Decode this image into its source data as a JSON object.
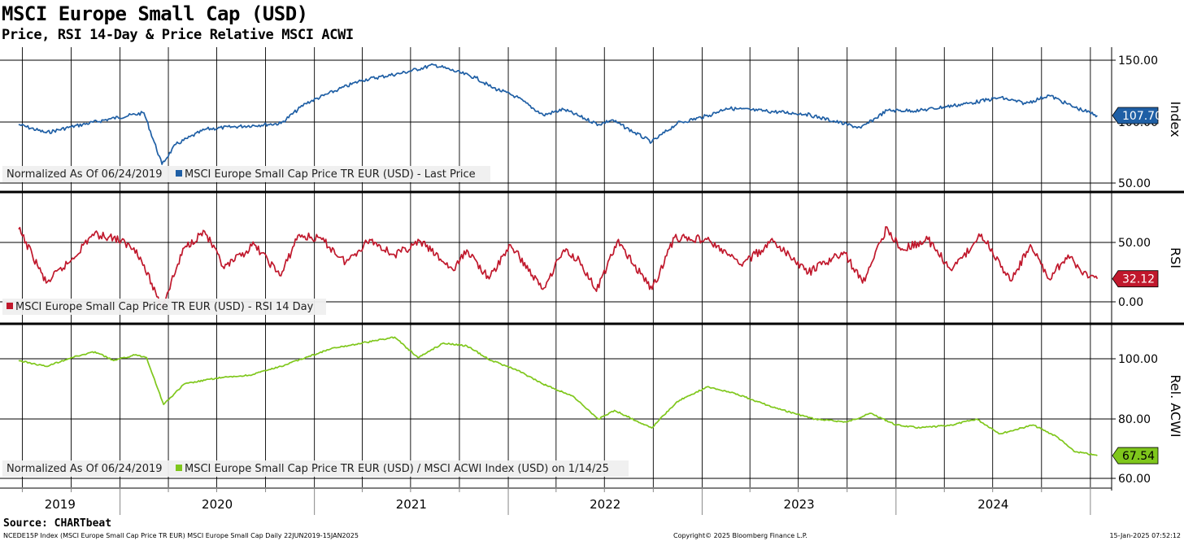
{
  "header": {
    "title": "MSCI Europe Small Cap (USD)",
    "subtitle": "Price, RSI 14-Day & Price Relative MSCI ACWI",
    "source": "Source: CHARTbeat"
  },
  "footer": {
    "left": "NCEDE15P Index (MSCI Europe Small Cap Price TR EUR) MSCI Europe Small Cap  Daily 22JUN2019-15JAN2025",
    "center": "Copyright© 2025 Bloomberg Finance L.P.",
    "right": "15-Jan-2025 07:52:12"
  },
  "chart_data": [
    {
      "type": "line",
      "axis_title": "Index",
      "legend_prefix": "Normalized As Of 06/24/2019",
      "legend_label": "MSCI Europe Small Cap Price TR EUR (USD) - Last Price",
      "color": "#1f5fa5",
      "ylim": [
        50,
        155
      ],
      "yticks": [
        "150.00",
        "100.00",
        "50.00"
      ],
      "last_value": "107.70",
      "x": [
        "2019-06-24",
        "2019-08-15",
        "2019-10-01",
        "2019-12-15",
        "2020-02-15",
        "2020-03-20",
        "2020-04-15",
        "2020-06-10",
        "2020-08-01",
        "2020-10-30",
        "2020-12-15",
        "2021-02-15",
        "2021-04-01",
        "2021-06-15",
        "2021-08-15",
        "2021-11-01",
        "2021-11-30",
        "2022-01-15",
        "2022-03-08",
        "2022-04-15",
        "2022-06-20",
        "2022-07-15",
        "2022-09-28",
        "2022-11-15",
        "2023-01-15",
        "2023-02-15",
        "2023-04-15",
        "2023-07-15",
        "2023-10-27",
        "2023-12-15",
        "2024-02-15",
        "2024-05-15",
        "2024-07-15",
        "2024-09-01",
        "2024-10-15",
        "2024-12-01",
        "2025-01-14"
      ],
      "y": [
        100,
        93,
        98,
        105,
        110,
        66,
        83,
        96,
        98,
        101,
        118,
        130,
        138,
        144,
        151,
        140,
        132,
        124,
        108,
        113,
        100,
        104,
        85,
        101,
        108,
        114,
        112,
        109,
        97,
        112,
        112,
        118,
        123,
        118,
        125,
        115,
        107.7
      ]
    },
    {
      "type": "line",
      "axis_title": "RSI",
      "legend_prefix": "",
      "legend_label": "MSCI Europe Small Cap Price TR EUR (USD) - RSI 14 Day",
      "color": "#c0182c",
      "ylim": [
        -5,
        97
      ],
      "yticks": [
        "50.00",
        "0.00"
      ],
      "last_value": "32.12",
      "x": [
        "2019-06-24",
        "2019-07-20",
        "2019-08-15",
        "2019-10-01",
        "2019-11-10",
        "2019-12-20",
        "2020-02-01",
        "2020-03-20",
        "2020-05-01",
        "2020-06-08",
        "2020-07-15",
        "2020-09-10",
        "2020-10-30",
        "2020-12-01",
        "2021-01-15",
        "2021-03-01",
        "2021-04-15",
        "2021-06-01",
        "2021-07-20",
        "2021-09-20",
        "2021-10-15",
        "2021-11-26",
        "2022-01-05",
        "2022-03-07",
        "2022-04-15",
        "2022-05-15",
        "2022-06-16",
        "2022-07-25",
        "2022-09-29",
        "2022-11-10",
        "2023-01-10",
        "2023-03-15",
        "2023-05-15",
        "2023-07-20",
        "2023-09-25",
        "2023-10-30",
        "2023-12-15",
        "2024-01-10",
        "2024-03-01",
        "2024-04-15",
        "2024-06-10",
        "2024-08-05",
        "2024-09-10",
        "2024-10-15",
        "2024-11-20",
        "2024-12-15",
        "2025-01-14"
      ],
      "y": [
        80,
        55,
        28,
        50,
        75,
        72,
        60,
        5,
        62,
        78,
        42,
        65,
        35,
        74,
        70,
        48,
        70,
        55,
        68,
        40,
        60,
        32,
        65,
        22,
        60,
        50,
        20,
        68,
        22,
        72,
        70,
        46,
        68,
        38,
        58,
        28,
        82,
        60,
        70,
        40,
        75,
        30,
        65,
        32,
        55,
        38,
        32.12
      ]
    },
    {
      "type": "line",
      "axis_title": "Rel. ACWI",
      "legend_prefix": "Normalized As Of 06/24/2019",
      "legend_label": "MSCI Europe Small Cap Price TR EUR (USD) / MSCI ACWI Index (USD) on 1/14/25",
      "color": "#7fc71c",
      "ylim": [
        57,
        112
      ],
      "yticks": [
        "100.00",
        "80.00",
        "60.00"
      ],
      "last_value": "67.54",
      "x": [
        "2019-06-24",
        "2019-08-15",
        "2019-10-01",
        "2019-11-15",
        "2019-12-20",
        "2020-01-31",
        "2020-02-20",
        "2020-03-23",
        "2020-05-01",
        "2020-07-01",
        "2020-09-01",
        "2020-10-30",
        "2020-12-15",
        "2021-02-01",
        "2021-04-01",
        "2021-06-01",
        "2021-07-15",
        "2021-09-01",
        "2021-10-15",
        "2021-11-30",
        "2022-01-15",
        "2022-03-07",
        "2022-05-01",
        "2022-06-20",
        "2022-07-20",
        "2022-09-28",
        "2022-11-15",
        "2023-01-10",
        "2023-03-01",
        "2023-05-15",
        "2023-08-01",
        "2023-10-01",
        "2023-11-15",
        "2024-01-01",
        "2024-02-15",
        "2024-04-15",
        "2024-06-01",
        "2024-07-15",
        "2024-09-15",
        "2024-10-30",
        "2024-12-01",
        "2025-01-14"
      ],
      "y": [
        100,
        98,
        101,
        103,
        100,
        102,
        101,
        85,
        92,
        94,
        95,
        98,
        101,
        104,
        106,
        108,
        101,
        106,
        105,
        100,
        97,
        92,
        88,
        80,
        83,
        77,
        86,
        91,
        89,
        84,
        80,
        79,
        82,
        78,
        77,
        78,
        80,
        75,
        78,
        74,
        69,
        67.54
      ]
    }
  ],
  "x_axis": {
    "years": [
      "2019",
      "2020",
      "2021",
      "2022",
      "2023",
      "2024"
    ],
    "x_start": "2019-05-20",
    "x_end": "2025-02-10"
  }
}
